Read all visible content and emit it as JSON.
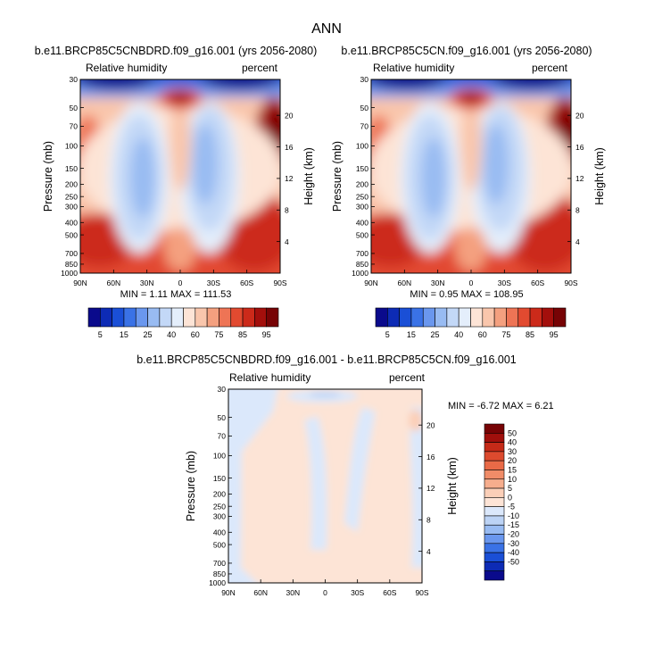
{
  "figure": {
    "title": "ANN"
  },
  "colors": {
    "panel_palette": [
      "#0a0a8c",
      "#0d2bb5",
      "#1a4fd6",
      "#3a72e6",
      "#6a97ee",
      "#98bbf2",
      "#c3d8f7",
      "#e4eefb",
      "#fde4d6",
      "#f9c6ac",
      "#f4a07f",
      "#ee7455",
      "#e24a30",
      "#cc2a1a",
      "#a30f0c",
      "#770305"
    ],
    "diff_palette": [
      "#0a0a8c",
      "#0d2bb5",
      "#1a4fd6",
      "#3a72e6",
      "#6a97ee",
      "#98bbf2",
      "#bcd3f5",
      "#dbe8fb",
      "#fde4d6",
      "#fbcfb8",
      "#f6ad8d",
      "#f08c68",
      "#e96a47",
      "#dc4a2e",
      "#c52a18",
      "#a00f0c",
      "#770305"
    ]
  },
  "chart_data": [
    {
      "type": "heatmap",
      "panel": "left",
      "title": "b.e11.BRCP85C5CNBDRD.f09_g16.001 (yrs 2056-2080)",
      "variable_label": "Relative humidity",
      "units_label": "percent",
      "ylabel": "Pressure (mb)",
      "y2label": "Height (km)",
      "x_ticks": [
        "90N",
        "60N",
        "30N",
        "0",
        "30S",
        "60S",
        "90S"
      ],
      "y_ticks": [
        "30",
        "50",
        "70",
        "100",
        "150",
        "200",
        "250",
        "300",
        "400",
        "500",
        "700",
        "850",
        "1000"
      ],
      "y_ticks_values": [
        30,
        50,
        70,
        100,
        150,
        200,
        250,
        300,
        400,
        500,
        700,
        850,
        1000
      ],
      "y2_ticks": [
        "20",
        "16",
        "12",
        "8",
        "4"
      ],
      "y2_ticks_values": [
        20,
        16,
        12,
        8,
        4
      ],
      "min_max_text": "MIN =  1.11  MAX = 111.53",
      "min": 1.11,
      "max": 111.53,
      "colorbar_labels": [
        "5",
        "15",
        "25",
        "40",
        "60",
        "75",
        "85",
        "95"
      ]
    },
    {
      "type": "heatmap",
      "panel": "right",
      "title": "b.e11.BRCP85C5CN.f09_g16.001 (yrs 2056-2080)",
      "variable_label": "Relative humidity",
      "units_label": "percent",
      "ylabel": "Pressure (mb)",
      "y2label": "Height (km)",
      "x_ticks": [
        "90N",
        "60N",
        "30N",
        "0",
        "30S",
        "60S",
        "90S"
      ],
      "y_ticks": [
        "30",
        "50",
        "70",
        "100",
        "150",
        "200",
        "250",
        "300",
        "400",
        "500",
        "700",
        "850",
        "1000"
      ],
      "y_ticks_values": [
        30,
        50,
        70,
        100,
        150,
        200,
        250,
        300,
        400,
        500,
        700,
        850,
        1000
      ],
      "y2_ticks": [
        "20",
        "16",
        "12",
        "8",
        "4"
      ],
      "y2_ticks_values": [
        20,
        16,
        12,
        8,
        4
      ],
      "min_max_text": "MIN =  0.95  MAX = 108.95",
      "min": 0.95,
      "max": 108.95,
      "colorbar_labels": [
        "5",
        "15",
        "25",
        "40",
        "60",
        "75",
        "85",
        "95"
      ]
    },
    {
      "type": "heatmap",
      "panel": "difference",
      "title": "b.e11.BRCP85C5CNBDRD.f09_g16.001 - b.e11.BRCP85C5CN.f09_g16.001",
      "variable_label": "Relative humidity",
      "units_label": "percent",
      "ylabel": "Pressure (mb)",
      "y2label": "Height (km)",
      "x_ticks": [
        "90N",
        "60N",
        "30N",
        "0",
        "30S",
        "60S",
        "90S"
      ],
      "y_ticks": [
        "30",
        "50",
        "70",
        "100",
        "150",
        "200",
        "250",
        "300",
        "400",
        "500",
        "700",
        "850",
        "1000"
      ],
      "y_ticks_values": [
        30,
        50,
        70,
        100,
        150,
        200,
        250,
        300,
        400,
        500,
        700,
        850,
        1000
      ],
      "y2_ticks": [
        "20",
        "16",
        "12",
        "8",
        "4"
      ],
      "y2_ticks_values": [
        20,
        16,
        12,
        8,
        4
      ],
      "min_max_text": "MIN =  -6.72  MAX =   6.21",
      "min": -6.72,
      "max": 6.21,
      "colorbar_labels": [
        "50",
        "40",
        "30",
        "20",
        "15",
        "10",
        "5",
        "0",
        "-5",
        "-10",
        "-15",
        "-20",
        "-30",
        "-40",
        "-50"
      ]
    }
  ]
}
